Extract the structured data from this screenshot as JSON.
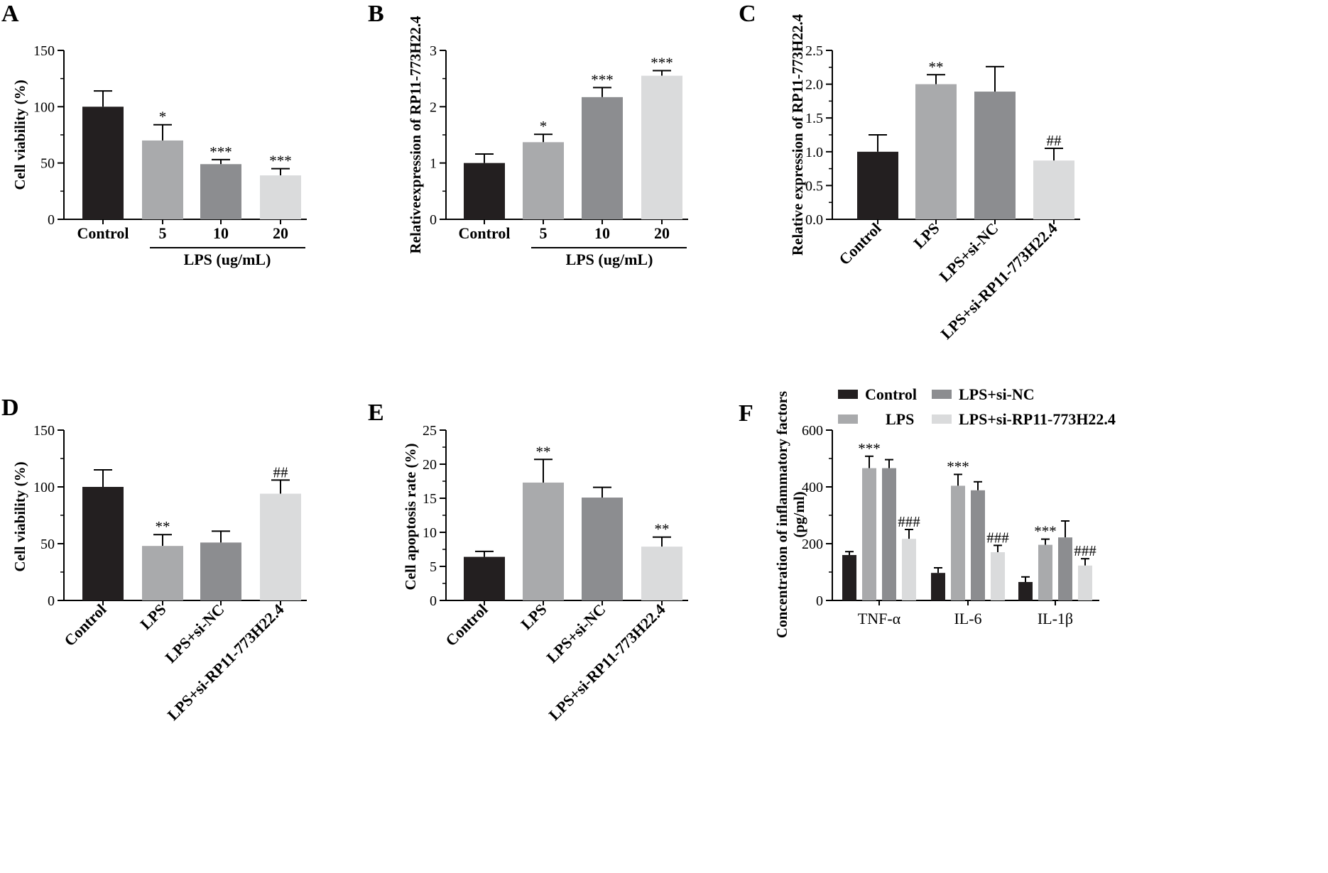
{
  "colors": {
    "black": "#231f20",
    "lightgray": "#a9aaac",
    "midgray": "#8c8d90",
    "palegray": "#dadbdc"
  },
  "chart_data": [
    {
      "id": "A",
      "panel_label": "A",
      "type": "bar",
      "ylabel": "Cell viability (%)",
      "ylim": [
        0,
        150
      ],
      "yticks": [
        "0",
        "50",
        "100",
        "150"
      ],
      "categories": [
        "Control",
        "5",
        "10",
        "20"
      ],
      "values": [
        100,
        70,
        49,
        39
      ],
      "errors": [
        14,
        14,
        4,
        6
      ],
      "significance": [
        "",
        "*",
        "***",
        "***"
      ],
      "colors": [
        "#231f20",
        "#a9aaac",
        "#8c8d90",
        "#dadbdc"
      ],
      "group_label": "LPS (ug/mL)",
      "rotate_labels": false
    },
    {
      "id": "B",
      "panel_label": "B",
      "type": "bar",
      "ylabel": "Relativeexpression of RP11-773H22.4",
      "ylim": [
        0,
        3
      ],
      "yticks": [
        "0",
        "1",
        "2",
        "3"
      ],
      "categories": [
        "Control",
        "5",
        "10",
        "20"
      ],
      "values": [
        1.0,
        1.37,
        2.17,
        2.55
      ],
      "errors": [
        0.16,
        0.14,
        0.17,
        0.09
      ],
      "significance": [
        "",
        "*",
        "***",
        "***"
      ],
      "colors": [
        "#231f20",
        "#a9aaac",
        "#8c8d90",
        "#dadbdc"
      ],
      "group_label": "LPS (ug/mL)",
      "rotate_labels": false
    },
    {
      "id": "C",
      "panel_label": "C",
      "type": "bar",
      "ylabel": "Relative expression of RP11-773H22.4",
      "ylim": [
        0,
        2.5
      ],
      "yticks": [
        "0.0",
        "0.5",
        "1.0",
        "1.5",
        "2.0",
        "2.5"
      ],
      "categories": [
        "Control",
        "LPS",
        "LPS+si-NC",
        "LPS+si-RP11-773H22.4"
      ],
      "values": [
        1.0,
        2.0,
        1.89,
        0.87
      ],
      "errors": [
        0.25,
        0.14,
        0.37,
        0.18
      ],
      "significance": [
        "",
        "**",
        "",
        "##"
      ],
      "colors": [
        "#231f20",
        "#a9aaac",
        "#8c8d90",
        "#dadbdc"
      ],
      "rotate_labels": true
    },
    {
      "id": "D",
      "panel_label": "D",
      "type": "bar",
      "ylabel": "Cell viability (%)",
      "ylim": [
        0,
        150
      ],
      "yticks": [
        "0",
        "50",
        "100",
        "150"
      ],
      "categories": [
        "Control",
        "LPS",
        "LPS+si-NC",
        "LPS+si-RP11-773H22.4"
      ],
      "values": [
        100,
        48,
        51,
        94
      ],
      "errors": [
        15,
        10,
        10,
        12
      ],
      "significance": [
        "",
        "**",
        "",
        "##"
      ],
      "colors": [
        "#231f20",
        "#a9aaac",
        "#8c8d90",
        "#dadbdc"
      ],
      "rotate_labels": true
    },
    {
      "id": "E",
      "panel_label": "E",
      "type": "bar",
      "ylabel": "Cell apoptosis rate (%)",
      "ylim": [
        0,
        25
      ],
      "yticks": [
        "0",
        "5",
        "10",
        "15",
        "20",
        "25"
      ],
      "categories": [
        "Control",
        "LPS",
        "LPS+si-NC",
        "LPS+si-RP11-773H22.4"
      ],
      "values": [
        6.4,
        17.3,
        15.1,
        7.9
      ],
      "errors": [
        0.8,
        3.4,
        1.5,
        1.4
      ],
      "significance": [
        "",
        "**",
        "",
        "**"
      ],
      "colors": [
        "#231f20",
        "#a9aaac",
        "#8c8d90",
        "#dadbdc"
      ],
      "rotate_labels": true
    },
    {
      "id": "F",
      "panel_label": "F",
      "type": "bar",
      "ylabel_line1": "Concentration of inflammatory factors",
      "ylabel_line2": "(pg/ml)",
      "ylim": [
        0,
        600
      ],
      "yticks": [
        "0",
        "200",
        "400",
        "600"
      ],
      "categories": [
        "TNF-α",
        "IL-6",
        "IL-1β"
      ],
      "series": [
        {
          "name": "Control",
          "color": "#231f20",
          "values": [
            160,
            97,
            65
          ],
          "errors": [
            12,
            18,
            18
          ],
          "significance": [
            "",
            "",
            ""
          ]
        },
        {
          "name": "LPS",
          "color": "#a9aaac",
          "values": [
            466,
            404,
            196
          ],
          "errors": [
            42,
            40,
            20
          ],
          "significance": [
            "***",
            "***",
            "***"
          ]
        },
        {
          "name": "LPS+si-NC",
          "color": "#8c8d90",
          "values": [
            466,
            388,
            222
          ],
          "errors": [
            30,
            30,
            58
          ],
          "significance": [
            "",
            "",
            ""
          ]
        },
        {
          "name": "LPS+si-RP11-773H22.4",
          "color": "#dadbdc",
          "values": [
            217,
            170,
            123
          ],
          "errors": [
            33,
            24,
            24
          ],
          "significance": [
            "###",
            "###",
            "###"
          ]
        }
      ]
    }
  ]
}
